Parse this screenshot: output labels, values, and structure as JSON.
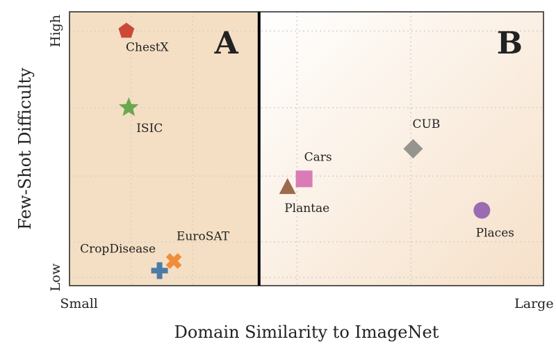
{
  "chart_data": {
    "type": "scatter",
    "xlabel": "Domain Similarity to ImageNet",
    "ylabel": "Few-Shot Difficulty",
    "xlim": [
      0,
      10
    ],
    "ylim": [
      0,
      10
    ],
    "x_tick_labels": [
      {
        "value": 0.2,
        "label": "Small"
      },
      {
        "value": 9.8,
        "label": "Large"
      }
    ],
    "y_tick_labels": [
      {
        "value": 9.3,
        "label": "High"
      },
      {
        "value": 0.3,
        "label": "Low"
      }
    ],
    "grid": true,
    "regions": [
      {
        "label": "A",
        "x_range": [
          0,
          4
        ],
        "color": "#f4dfc4"
      },
      {
        "label": "B",
        "x_range": [
          4,
          10
        ],
        "color": "#fbefe3"
      }
    ],
    "divider_x": 4,
    "points": [
      {
        "label": "ChestX",
        "x": 1.2,
        "y": 9.3,
        "marker": "pentagon",
        "color": "#cc4a35"
      },
      {
        "label": "ISIC",
        "x": 1.25,
        "y": 6.5,
        "marker": "star",
        "color": "#6aa84f"
      },
      {
        "label": "CropDisease",
        "x": 1.9,
        "y": 0.55,
        "marker": "plus",
        "color": "#4b7ca8"
      },
      {
        "label": "EuroSAT",
        "x": 2.2,
        "y": 0.9,
        "marker": "x",
        "color": "#f08c3a"
      },
      {
        "label": "Cars",
        "x": 4.95,
        "y": 3.9,
        "marker": "square",
        "color": "#d97cb6"
      },
      {
        "label": "Plantae",
        "x": 4.6,
        "y": 3.6,
        "marker": "triangle",
        "color": "#9c6a4f"
      },
      {
        "label": "CUB",
        "x": 7.25,
        "y": 5.0,
        "marker": "diamond",
        "color": "#95948e"
      },
      {
        "label": "Places",
        "x": 8.7,
        "y": 2.75,
        "marker": "circle",
        "color": "#9b6bb3"
      }
    ]
  }
}
